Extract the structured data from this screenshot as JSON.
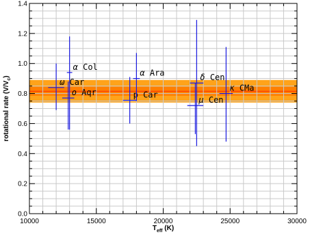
{
  "chart_data": {
    "type": "scatter",
    "title": "",
    "xlabel": "T_eff (K)",
    "ylabel": "rotational rate (V/V_c)",
    "xlim": [
      10000,
      30000
    ],
    "ylim": [
      0.0,
      1.4
    ],
    "x_ticks": [
      10000,
      15000,
      20000,
      25000,
      30000
    ],
    "y_ticks": [
      0.0,
      0.2,
      0.4,
      0.6,
      0.8,
      1.0,
      1.2,
      1.4
    ],
    "x_tick_labels": [
      "10000",
      "15000",
      "20000",
      "25000",
      "30000"
    ],
    "y_tick_labels": [
      "0.0",
      "0.2",
      "0.4",
      "0.6",
      "0.8",
      "1.0",
      "1.2",
      "1.4"
    ],
    "grid": true,
    "band": {
      "center": 0.815,
      "inner": [
        0.785,
        0.845
      ],
      "outer": [
        0.74,
        0.89
      ]
    },
    "band_colors": {
      "outer": "#ffa31a",
      "inner": "#ff7f00",
      "center": "#ff2a00"
    },
    "marker_color": "#1a1adf",
    "points": [
      {
        "star": "ω Car",
        "greek": "ω",
        "name": "Car",
        "x": 12000,
        "y": 0.84,
        "x_err": 600,
        "y_low": 0.69,
        "y_high": 1.0,
        "label_pos": "upper-right"
      },
      {
        "star": "α Col",
        "greek": "α",
        "name": "Col",
        "x": 13000,
        "y": 0.94,
        "x_err": 200,
        "y_low": 0.56,
        "y_high": 1.18,
        "label_pos": "upper-right"
      },
      {
        "star": "o Aqr",
        "greek": "o",
        "name": "Aqr",
        "x": 12900,
        "y": 0.77,
        "x_err": 450,
        "y_low": 0.56,
        "y_high": 0.88,
        "label_pos": "upper-right"
      },
      {
        "star": "p Car",
        "greek": "",
        "name": "p Car",
        "x": 17500,
        "y": 0.755,
        "x_err": 500,
        "y_low": 0.6,
        "y_high": 0.91,
        "label_pos": "upper-right"
      },
      {
        "star": "α Ara",
        "greek": "α",
        "name": "Ara",
        "x": 18000,
        "y": 0.9,
        "x_err": 250,
        "y_low": 0.75,
        "y_high": 1.07,
        "label_pos": "upper-right"
      },
      {
        "star": "δ Cen",
        "greek": "δ",
        "name": "Cen",
        "x": 22500,
        "y": 0.87,
        "x_err": 500,
        "y_low": 0.45,
        "y_high": 1.29,
        "label_pos": "upper-right"
      },
      {
        "star": "μ Cen",
        "greek": "μ",
        "name": "Cen",
        "x": 22400,
        "y": 0.72,
        "x_err": 600,
        "y_low": 0.53,
        "y_high": 0.87,
        "label_pos": "upper-right"
      },
      {
        "star": "κ CMa",
        "greek": "κ",
        "name": "CMa",
        "x": 24700,
        "y": 0.8,
        "x_err": 500,
        "y_low": 0.48,
        "y_high": 1.11,
        "label_pos": "upper-right"
      }
    ]
  }
}
